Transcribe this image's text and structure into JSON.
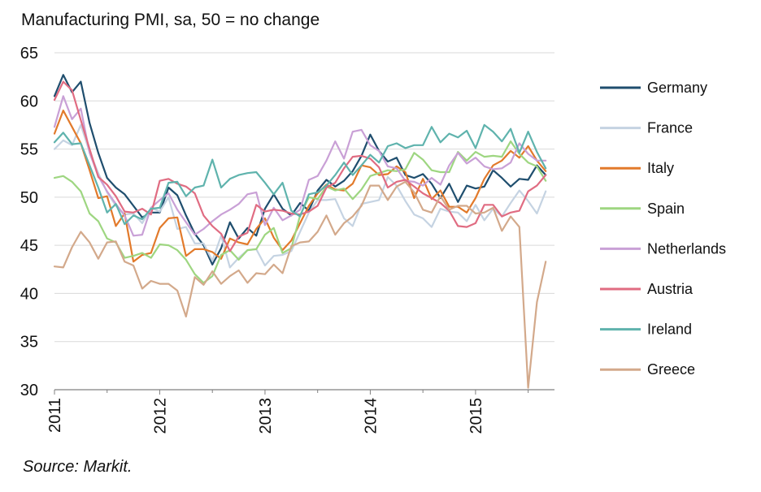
{
  "chart_data": {
    "type": "line",
    "title": "Manufacturing PMI, sa, 50 = no change",
    "source": "Source: Markit.",
    "ylim": [
      30,
      65
    ],
    "yticks": [
      "30",
      "35",
      "40",
      "45",
      "50",
      "55",
      "60",
      "65"
    ],
    "ytick_values": [
      30,
      35,
      40,
      45,
      50,
      55,
      60,
      65
    ],
    "xlim": [
      2011.0,
      2015.75
    ],
    "xticks": [
      "2011",
      "2012",
      "2013",
      "2014",
      "2015"
    ],
    "xtick_values": [
      2011,
      2012,
      2013,
      2014,
      2015
    ],
    "x_start": 2011.0,
    "x_step_months": 1,
    "grid": "horizontal",
    "legend_position": "right",
    "series": [
      {
        "name": "Germany",
        "color": "#1f4e6e",
        "values": [
          60.5,
          62.7,
          60.9,
          62.0,
          57.7,
          54.6,
          52.0,
          51.0,
          50.3,
          49.1,
          47.9,
          48.4,
          48.4,
          51.0,
          50.2,
          48.1,
          46.2,
          45.0,
          43.0,
          44.7,
          47.4,
          45.7,
          46.8,
          46.0,
          48.8,
          50.3,
          48.8,
          48.1,
          49.4,
          48.6,
          50.7,
          51.8,
          51.1,
          51.7,
          52.7,
          54.3,
          56.5,
          54.8,
          53.7,
          54.1,
          52.3,
          52.0,
          52.4,
          51.4,
          49.9,
          51.4,
          49.5,
          51.2,
          50.9,
          51.1,
          52.8,
          52.0,
          51.1,
          51.9,
          51.8,
          53.3,
          52.3
        ]
      },
      {
        "name": "France",
        "color": "#c5d3e2",
        "values": [
          55.0,
          55.9,
          55.4,
          57.5,
          54.7,
          52.5,
          50.5,
          49.1,
          48.2,
          48.3,
          47.3,
          48.9,
          48.5,
          50.0,
          46.7,
          46.9,
          45.2,
          45.2,
          43.4,
          46.0,
          42.7,
          43.7,
          44.5,
          44.6,
          42.9,
          43.9,
          44.0,
          44.4,
          46.4,
          48.4,
          49.7,
          49.7,
          49.8,
          47.8,
          47.0,
          49.3,
          49.5,
          49.7,
          52.1,
          51.2,
          49.6,
          48.2,
          47.8,
          46.9,
          48.8,
          48.5,
          48.4,
          47.5,
          49.2,
          47.6,
          48.8,
          48.0,
          49.4,
          50.7,
          49.6,
          48.3,
          50.6
        ]
      },
      {
        "name": "Italy",
        "color": "#e27a2b",
        "values": [
          56.6,
          59.0,
          57.3,
          55.6,
          52.8,
          49.9,
          50.1,
          47.0,
          48.3,
          43.3,
          44.0,
          44.2,
          46.8,
          47.8,
          47.9,
          43.9,
          44.6,
          44.6,
          44.3,
          43.6,
          45.7,
          45.3,
          45.1,
          46.7,
          47.8,
          45.8,
          44.5,
          45.5,
          47.3,
          49.1,
          50.4,
          51.3,
          50.8,
          50.7,
          51.4,
          53.3,
          53.1,
          52.3,
          52.4,
          53.2,
          52.6,
          49.9,
          51.9,
          49.8,
          50.7,
          49.0,
          49.0,
          48.4,
          49.9,
          51.9,
          53.3,
          53.8,
          54.8,
          54.1,
          55.3,
          53.8,
          52.7
        ]
      },
      {
        "name": "Spain",
        "color": "#9ed681",
        "values": [
          52.0,
          52.2,
          51.6,
          50.6,
          48.3,
          47.5,
          45.7,
          45.3,
          43.7,
          43.9,
          44.2,
          43.7,
          45.1,
          45.0,
          44.5,
          43.5,
          42.0,
          41.1,
          41.8,
          44.0,
          44.5,
          43.5,
          44.5,
          44.6,
          46.1,
          46.8,
          44.2,
          44.7,
          48.1,
          50.0,
          49.8,
          51.1,
          50.7,
          50.9,
          49.8,
          50.8,
          52.2,
          52.5,
          52.8,
          52.7,
          52.9,
          54.6,
          53.9,
          52.8,
          52.6,
          52.6,
          54.7,
          53.8,
          54.7,
          54.2,
          54.3,
          54.2,
          55.8,
          54.5,
          53.6,
          53.2,
          51.7
        ]
      },
      {
        "name": "Netherlands",
        "color": "#c9a0d6",
        "values": [
          57.3,
          60.5,
          58.1,
          59.2,
          54.6,
          52.2,
          50.6,
          49.3,
          48.1,
          46.0,
          46.1,
          48.9,
          49.7,
          50.4,
          48.7,
          47.4,
          46.1,
          46.7,
          47.5,
          48.2,
          48.7,
          49.3,
          50.3,
          50.5,
          47.1,
          48.9,
          47.6,
          48.1,
          48.7,
          51.8,
          52.2,
          53.8,
          55.8,
          54.0,
          56.8,
          57.0,
          55.4,
          54.8,
          53.2,
          53.0,
          51.7,
          51.6,
          51.2,
          52.0,
          51.3,
          53.3,
          54.6,
          53.5,
          54.1,
          53.2,
          52.9,
          53.0,
          53.6,
          55.6,
          54.5,
          53.8,
          53.8
        ]
      },
      {
        "name": "Austria",
        "color": "#e06c82",
        "values": [
          60.1,
          62.0,
          61.1,
          58.0,
          55.0,
          52.1,
          51.3,
          50.1,
          48.5,
          48.4,
          48.8,
          48.2,
          51.7,
          51.9,
          51.4,
          51.1,
          50.4,
          48.1,
          47.0,
          46.2,
          44.4,
          45.9,
          46.3,
          49.2,
          48.5,
          48.7,
          48.6,
          48.3,
          48.2,
          48.5,
          49.1,
          51.0,
          51.5,
          53.0,
          54.2,
          54.3,
          54.0,
          53.1,
          51.0,
          51.6,
          51.8,
          51.1,
          50.4,
          49.9,
          49.4,
          48.6,
          47.0,
          46.9,
          47.3,
          49.2,
          49.2,
          48.0,
          48.4,
          48.6,
          50.6,
          51.2,
          52.3
        ]
      },
      {
        "name": "Ireland",
        "color": "#5fb3ad",
        "values": [
          55.7,
          56.7,
          55.5,
          55.6,
          53.3,
          51.0,
          48.4,
          49.3,
          47.2,
          48.1,
          47.7,
          48.8,
          48.9,
          51.5,
          51.6,
          50.1,
          51.0,
          51.2,
          53.9,
          51.0,
          51.9,
          52.3,
          52.5,
          52.6,
          51.5,
          50.3,
          51.5,
          48.6,
          48.0,
          50.3,
          50.5,
          51.2,
          52.3,
          53.6,
          52.3,
          53.3,
          54.4,
          53.6,
          55.3,
          55.6,
          55.1,
          55.4,
          55.4,
          57.3,
          55.7,
          56.6,
          56.2,
          56.9,
          55.1,
          57.5,
          56.8,
          55.8,
          57.1,
          54.6,
          56.8,
          54.7,
          53.0
        ]
      },
      {
        "name": "Greece",
        "color": "#d3a98b",
        "values": [
          42.8,
          42.7,
          44.8,
          46.4,
          45.3,
          43.6,
          45.3,
          45.4,
          43.3,
          42.9,
          40.5,
          41.3,
          41.0,
          41.0,
          40.3,
          37.6,
          41.7,
          40.9,
          42.3,
          41.0,
          41.8,
          42.4,
          41.1,
          42.1,
          42.0,
          43.0,
          42.1,
          44.9,
          45.3,
          45.4,
          46.4,
          48.1,
          46.1,
          47.3,
          48.0,
          49.1,
          51.2,
          51.2,
          49.7,
          51.1,
          51.6,
          50.5,
          48.7,
          48.4,
          50.1,
          48.7,
          49.1,
          49.1,
          48.3,
          48.4,
          48.9,
          46.5,
          48.0,
          46.9,
          30.2,
          39.1,
          43.3
        ]
      }
    ]
  }
}
